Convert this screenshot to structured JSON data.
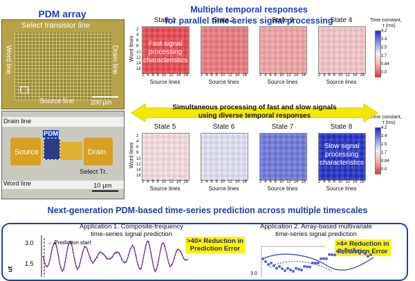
{
  "left_panel": {
    "title": "PDM array",
    "select_transistor_line": "Select transistor line",
    "word_line": "Word line",
    "drain_line": "Drain line",
    "source_line": "Source line",
    "scale_bar_top": "200 μm",
    "zoom": {
      "drain_line": "Drain line",
      "pdm": "PDM",
      "source": "Source",
      "drain": "Drain",
      "select_tr": "Select Tr.",
      "word_line": "Word line",
      "scale_bar": "10 μm"
    }
  },
  "main_title_line1": "Multiple temporal responses",
  "main_title_line2": "for parallel time-series signal processing",
  "colorbar": {
    "title": "Time constant,",
    "unit": "τ (ms)",
    "ticks": [
      "4.2",
      "3.4",
      "2.5",
      "1.7",
      "0.84",
      "0.0"
    ],
    "colors": [
      "#1f28c8",
      "#8a93e0",
      "#efeff5",
      "#f2a6a6",
      "#e23a3a"
    ]
  },
  "states_top": [
    {
      "label": "State 1",
      "color": "#e8484e"
    },
    {
      "label": "State 2",
      "color": "#ec7a7e"
    },
    {
      "label": "State 3",
      "color": "#f1a3a6"
    },
    {
      "label": "State 4",
      "color": "#f4c6c8"
    }
  ],
  "states_bottom": [
    {
      "label": "State 5",
      "color": "#f6dce0"
    },
    {
      "label": "State 6",
      "color": "#dfe1f5"
    },
    {
      "label": "State 7",
      "color": "#6d79da"
    },
    {
      "label": "State 8",
      "color": "#2330c6"
    }
  ],
  "heatmap_axes": {
    "ylabel": "Word lines",
    "xlabel": "Source lines",
    "yticks": [
      "2",
      "4",
      "6",
      "8",
      "10",
      "12",
      "14",
      "16"
    ],
    "xticks": [
      "2",
      "4",
      "6",
      "8",
      "10",
      "12",
      "14",
      "16"
    ]
  },
  "overlay_fast": "Fast signal processing characteristics",
  "overlay_slow": "Slow signal processing characteristics",
  "arrow_text_line1": "Simultaneous processing of fast and slow signals",
  "arrow_text_line2": "using diverse temporal responses",
  "bottom_title": "Next-generation PDM-based time-series prediction across multiple timescales",
  "app1": {
    "title_line1": "Application 1. Composite-frequency",
    "title_line2": "time-series signal prediction",
    "prediction_start": "Prediction start",
    "yticks": [
      "3.0",
      "1.5"
    ],
    "ylabel_fragment": "ut",
    "tag_line1": ">40× Reduction in",
    "tag_line2": "Prediction Error"
  },
  "app2": {
    "title_line1": "Application 2. Array-based multivariate",
    "title_line2": "time-series signal prediction",
    "tag_line1": ">4× Reduction in",
    "tag_line2": "Prediction Error",
    "axis_tick": "3.0"
  }
}
